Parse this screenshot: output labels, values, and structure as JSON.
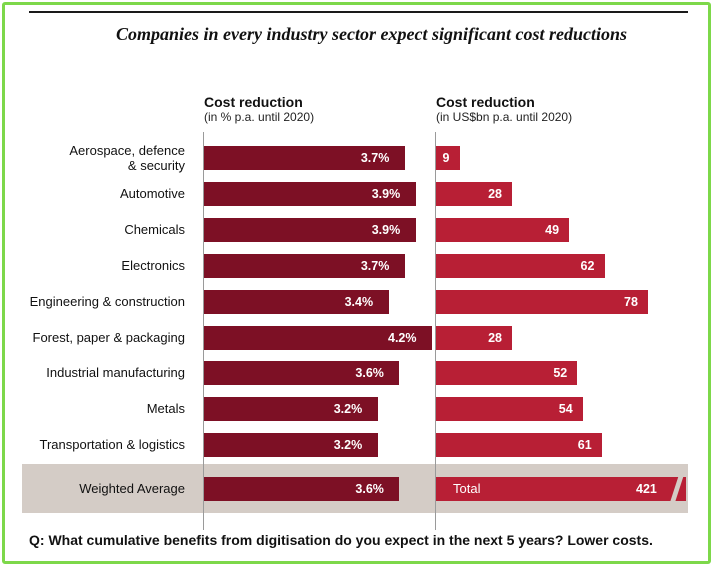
{
  "title": "Companies in every industry sector expect significant cost reductions",
  "left_header": {
    "title": "Cost reduction",
    "subtitle": "(in % p.a. until 2020)"
  },
  "right_header": {
    "title": "Cost reduction",
    "subtitle": "(in US$bn p.a. until 2020)"
  },
  "chart_data": [
    {
      "type": "bar",
      "orientation": "horizontal",
      "title": "Cost reduction",
      "subtitle": "(in % p.a. until 2020)",
      "categories": [
        "Aerospace, defence & security",
        "Automotive",
        "Chemicals",
        "Electronics",
        "Engineering & construction",
        "Forest, paper & packaging",
        "Industrial manufacturing",
        "Metals",
        "Transportation & logistics"
      ],
      "values": [
        3.7,
        3.9,
        3.9,
        3.7,
        3.4,
        4.2,
        3.6,
        3.2,
        3.2
      ],
      "labels": [
        "3.7%",
        "3.9%",
        "3.9%",
        "3.7%",
        "3.4%",
        "4.2%",
        "3.6%",
        "3.2%",
        "3.2%"
      ],
      "average": {
        "category": "Weighted Average",
        "value": 3.6,
        "label": "3.6%"
      }
    },
    {
      "type": "bar",
      "orientation": "horizontal",
      "title": "Cost reduction",
      "subtitle": "(in US$bn p.a. until 2020)",
      "categories": [
        "Aerospace, defence & security",
        "Automotive",
        "Chemicals",
        "Electronics",
        "Engineering & construction",
        "Forest, paper & packaging",
        "Industrial manufacturing",
        "Metals",
        "Transportation & logistics"
      ],
      "values": [
        9,
        28,
        49,
        62,
        78,
        28,
        52,
        54,
        61
      ],
      "labels": [
        "9",
        "28",
        "49",
        "62",
        "78",
        "28",
        "52",
        "54",
        "61"
      ],
      "total": {
        "label": "Total",
        "value": 421,
        "value_label": "421"
      }
    }
  ],
  "colors": {
    "left_bar": "#7d1025",
    "right_bar": "#b81f35",
    "frame": "#7dd84a"
  },
  "question": "Q: What cumulative benefits from digitisation do you expect in the next 5 years? Lower costs."
}
